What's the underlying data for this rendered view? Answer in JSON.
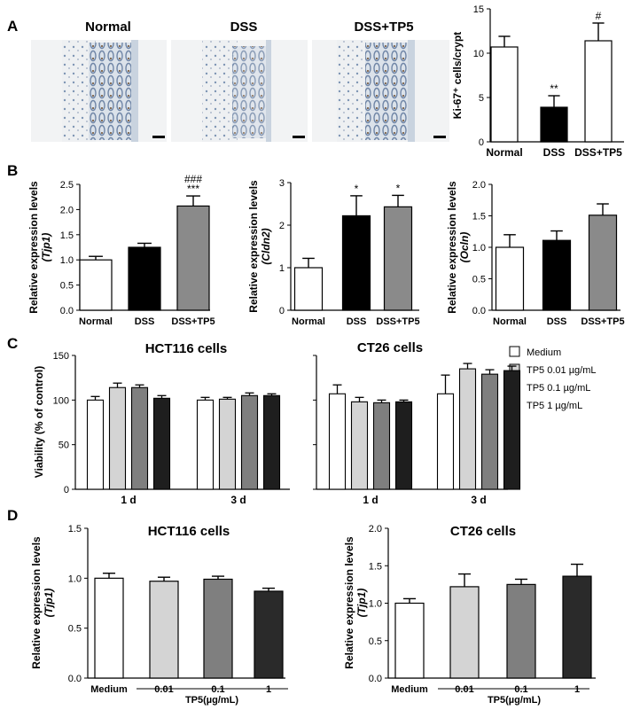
{
  "panels": {
    "A": "A",
    "B": "B",
    "C": "C",
    "D": "D"
  },
  "histology": {
    "labels": [
      "Normal",
      "DSS",
      "DSS+TP5"
    ]
  },
  "legend": {
    "items": [
      {
        "label": "Medium",
        "color": "#ffffff"
      },
      {
        "label": "TP5 0.01 µg/mL",
        "color": "#d4d4d4"
      },
      {
        "label": "TP5 0.1 µg/mL",
        "color": "#7f7f7f"
      },
      {
        "label": "TP5 1 µg/mL",
        "color": "#1e1e1e"
      }
    ]
  },
  "chart_data": [
    {
      "id": "A_ki67",
      "type": "bar",
      "ylabel": "Ki-67⁺ cells/crypt",
      "ylim": [
        0,
        15
      ],
      "yticks": [
        0,
        5,
        10,
        15
      ],
      "categories": [
        "Normal",
        "DSS",
        "DSS+TP5"
      ],
      "values": [
        10.7,
        3.9,
        11.4
      ],
      "errors": [
        1.2,
        1.3,
        2.0
      ],
      "colors": [
        "#ffffff",
        "#000000",
        "#ffffff"
      ],
      "annotations": [
        "",
        "**",
        "#"
      ]
    },
    {
      "id": "B_tjp1",
      "type": "bar",
      "ylabel": "Relative expression levels",
      "ylabel2": "(Tjp1)",
      "ylim": [
        0,
        2.5
      ],
      "yticks": [
        "0.0",
        "0.5",
        "1.0",
        "1.5",
        "2.0",
        "2.5"
      ],
      "categories": [
        "Normal",
        "DSS",
        "DSS+TP5"
      ],
      "values": [
        1.0,
        1.25,
        2.07
      ],
      "errors": [
        0.07,
        0.08,
        0.2
      ],
      "colors": [
        "#ffffff",
        "#000000",
        "#8a8a8a"
      ],
      "annotations": [
        "",
        "",
        "***"
      ],
      "annotations2": [
        "",
        "",
        "###"
      ]
    },
    {
      "id": "B_cldn2",
      "type": "bar",
      "ylabel": "Relative expression levels",
      "ylabel2": "(Cldn2)",
      "ylim": [
        0,
        3
      ],
      "yticks": [
        "0",
        "1",
        "2",
        "3"
      ],
      "categories": [
        "Normal",
        "DSS",
        "DSS+TP5"
      ],
      "values": [
        1.0,
        2.22,
        2.43
      ],
      "errors": [
        0.22,
        0.47,
        0.27
      ],
      "colors": [
        "#ffffff",
        "#000000",
        "#8a8a8a"
      ],
      "annotations": [
        "",
        "*",
        "*"
      ]
    },
    {
      "id": "B_ocln",
      "type": "bar",
      "ylabel": "Relative expression levels",
      "ylabel2": "(Ocln)",
      "ylim": [
        0,
        2.0
      ],
      "yticks": [
        "0.0",
        "0.5",
        "1.0",
        "1.5",
        "2.0"
      ],
      "categories": [
        "Normal",
        "DSS",
        "DSS+TP5"
      ],
      "values": [
        1.0,
        1.11,
        1.51
      ],
      "errors": [
        0.2,
        0.15,
        0.18
      ],
      "colors": [
        "#ffffff",
        "#000000",
        "#8a8a8a"
      ],
      "annotations": [
        "",
        "",
        ""
      ]
    },
    {
      "id": "C_hct116",
      "type": "bar",
      "title": "HCT116 cells",
      "ylabel": "Viability (% of control)",
      "ylim": [
        0,
        150
      ],
      "yticks": [
        "0",
        "50",
        "100",
        "150"
      ],
      "categories": [
        "1 d",
        "3 d"
      ],
      "series": [
        {
          "name": "Medium",
          "values": [
            100,
            100
          ],
          "errors": [
            4,
            3
          ]
        },
        {
          "name": "TP5 0.01 µg/mL",
          "values": [
            114,
            101
          ],
          "errors": [
            5,
            2
          ]
        },
        {
          "name": "TP5 0.1 µg/mL",
          "values": [
            114,
            105
          ],
          "errors": [
            3,
            3
          ]
        },
        {
          "name": "TP5 1 µg/mL",
          "values": [
            102,
            105
          ],
          "errors": [
            3,
            2
          ]
        }
      ]
    },
    {
      "id": "C_ct26",
      "type": "bar",
      "title": "CT26 cells",
      "ylim": [
        0,
        150
      ],
      "yticks": [
        "",
        "",
        "",
        ""
      ],
      "categories": [
        "1 d",
        "3 d"
      ],
      "series": [
        {
          "name": "Medium",
          "values": [
            107,
            107
          ],
          "errors": [
            10,
            21
          ]
        },
        {
          "name": "TP5 0.01 µg/mL",
          "values": [
            98,
            135
          ],
          "errors": [
            5,
            6
          ]
        },
        {
          "name": "TP5 0.1 µg/mL",
          "values": [
            97,
            129
          ],
          "errors": [
            3,
            5
          ]
        },
        {
          "name": "TP5 1 µg/mL",
          "values": [
            98,
            133
          ],
          "errors": [
            2,
            5
          ]
        }
      ]
    },
    {
      "id": "D_hct116",
      "type": "bar",
      "title": "HCT116 cells",
      "ylabel": "Relative expression levels",
      "ylabel2": "(Tjp1)",
      "ylim": [
        0,
        1.5
      ],
      "yticks": [
        "0.0",
        "0.5",
        "1.0",
        "1.5"
      ],
      "categories": [
        "Medium",
        "0.01",
        "0.1",
        "1"
      ],
      "values": [
        1.0,
        0.97,
        0.99,
        0.87
      ],
      "errors": [
        0.05,
        0.04,
        0.03,
        0.03
      ],
      "colors": [
        "#ffffff",
        "#d4d4d4",
        "#7f7f7f",
        "#2a2a2a"
      ],
      "xgroup": "TP5(µg/mL)"
    },
    {
      "id": "D_ct26",
      "type": "bar",
      "title": "CT26 cells",
      "ylabel": "Relative expression levels",
      "ylabel2": "(Tjp1)",
      "ylim": [
        0,
        2.0
      ],
      "yticks": [
        "0.0",
        "0.5",
        "1.0",
        "1.5",
        "2.0"
      ],
      "categories": [
        "Medium",
        "0.01",
        "0.1",
        "1"
      ],
      "values": [
        1.0,
        1.22,
        1.25,
        1.36
      ],
      "errors": [
        0.06,
        0.17,
        0.07,
        0.16
      ],
      "colors": [
        "#ffffff",
        "#d4d4d4",
        "#7f7f7f",
        "#2a2a2a"
      ],
      "xgroup": "TP5(µg/mL)"
    }
  ]
}
